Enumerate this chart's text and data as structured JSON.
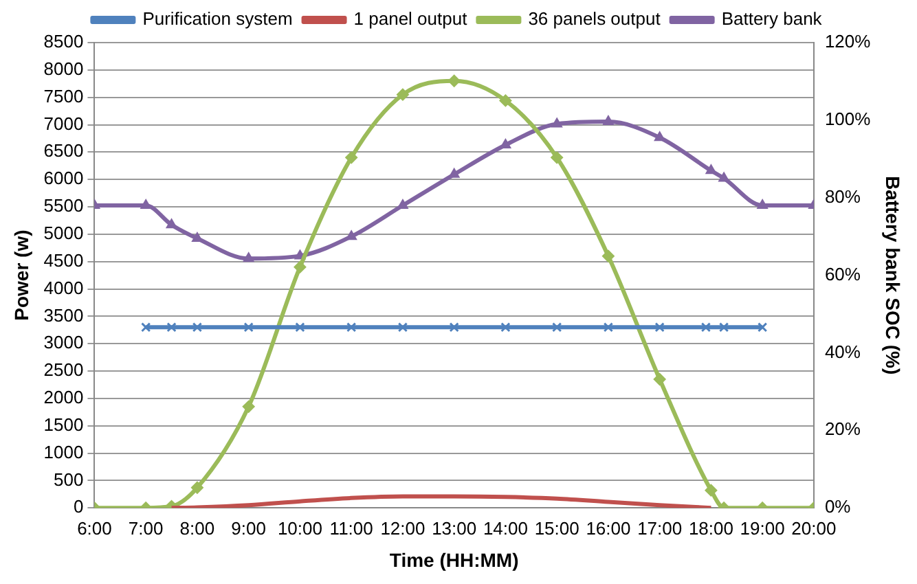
{
  "chart_data": {
    "type": "line",
    "xlabel": "Time (HH:MM)",
    "ylabel": "Power (w)",
    "y2label": "Battery bank SOC (%)",
    "xlim": [
      6,
      20
    ],
    "xticks": [
      {
        "value": 6,
        "label": "6:00"
      },
      {
        "value": 7,
        "label": "7:00"
      },
      {
        "value": 8,
        "label": "8:00"
      },
      {
        "value": 9,
        "label": "9:00"
      },
      {
        "value": 10,
        "label": "10:00"
      },
      {
        "value": 11,
        "label": "11:00"
      },
      {
        "value": 12,
        "label": "12:00"
      },
      {
        "value": 13,
        "label": "13:00"
      },
      {
        "value": 14,
        "label": "14:00"
      },
      {
        "value": 15,
        "label": "15:00"
      },
      {
        "value": 16,
        "label": "16:00"
      },
      {
        "value": 17,
        "label": "17:00"
      },
      {
        "value": 18,
        "label": "18:00"
      },
      {
        "value": 19,
        "label": "19:00"
      },
      {
        "value": 20,
        "label": "20:00"
      }
    ],
    "ylim": [
      0,
      8500
    ],
    "yticks": [
      0,
      500,
      1000,
      1500,
      2000,
      2500,
      3000,
      3500,
      4000,
      4500,
      5000,
      5500,
      6000,
      6500,
      7000,
      7500,
      8000,
      8500
    ],
    "y2lim": [
      0,
      120
    ],
    "y2ticks": [
      {
        "value": 0,
        "label": "0%"
      },
      {
        "value": 20,
        "label": "20%"
      },
      {
        "value": 40,
        "label": "40%"
      },
      {
        "value": 60,
        "label": "60%"
      },
      {
        "value": 80,
        "label": "80%"
      },
      {
        "value": 100,
        "label": "100%"
      },
      {
        "value": 120,
        "label": "120%"
      }
    ],
    "grid": "y",
    "legend": "top",
    "series": [
      {
        "name": "Purification system",
        "color": "#4f81bd",
        "marker": "cross",
        "x": [
          7,
          7.5,
          8,
          9,
          10,
          11,
          12,
          13,
          14,
          15,
          16,
          17,
          17.9,
          18.25,
          19
        ],
        "values": [
          3300,
          3300,
          3300,
          3300,
          3300,
          3300,
          3300,
          3300,
          3300,
          3300,
          3300,
          3300,
          3300,
          3300,
          3300
        ]
      },
      {
        "name": "1 panel output",
        "color": "#c0504d",
        "marker": "none",
        "x": [
          7.5,
          8,
          9,
          10,
          11,
          12,
          13,
          14,
          15,
          16,
          17,
          18
        ],
        "values": [
          0,
          10,
          50,
          120,
          180,
          210,
          210,
          200,
          170,
          110,
          50,
          0
        ]
      },
      {
        "name": "36 panels output",
        "color": "#9bbb59",
        "marker": "diamond",
        "x": [
          6,
          7,
          7.5,
          8,
          9,
          10,
          11,
          12,
          13,
          14,
          15,
          16,
          17,
          18,
          18.25,
          19,
          20
        ],
        "values": [
          0,
          0,
          30,
          370,
          1850,
          4400,
          6400,
          7550,
          7800,
          7440,
          6400,
          4600,
          2350,
          320,
          0,
          0,
          0
        ]
      },
      {
        "name": "Battery bank",
        "color": "#8064a2",
        "marker": "triangle",
        "axis": "y2",
        "x": [
          6,
          7,
          7.5,
          8,
          9,
          10,
          11,
          12,
          13,
          14,
          15,
          16,
          17,
          18,
          18.25,
          19,
          20
        ],
        "values": [
          78,
          78,
          73,
          69.5,
          64.3,
          65,
          70,
          78,
          86,
          93.6,
          99,
          99.6,
          95.5,
          87,
          85,
          78,
          78
        ]
      }
    ]
  }
}
